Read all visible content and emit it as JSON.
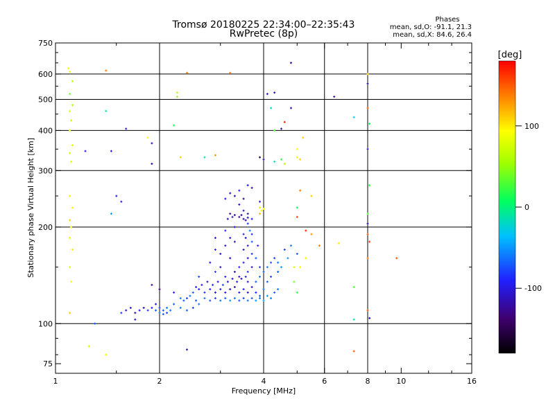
{
  "chart_data": {
    "type": "scatter",
    "title": "Tromsø 20180225 22:34:00–22:35:43",
    "subtitle": "RwPretec (8p)",
    "xlabel": "Frequency [MHz]",
    "ylabel": "Stationary phase Virtual Height [km]",
    "x_scale": "log",
    "y_scale": "log",
    "xlim": [
      1,
      16
    ],
    "ylim": [
      70,
      750
    ],
    "x_ticks": [
      1,
      2,
      4,
      6,
      8,
      10,
      16
    ],
    "x_tick_labels": [
      "1",
      "2",
      "4",
      "6",
      "8",
      "10",
      "16"
    ],
    "x_minor_ticks": [
      1.5,
      3,
      5,
      7,
      9,
      12,
      14
    ],
    "y_ticks": [
      75,
      100,
      200,
      300,
      400,
      500,
      600,
      750
    ],
    "y_tick_labels": [
      "75",
      "100",
      "200",
      "300",
      "400",
      "500",
      "600",
      "750"
    ],
    "grid_x": [
      2,
      4,
      6,
      8
    ],
    "grid_y": [
      100,
      200,
      300,
      400,
      500,
      600
    ],
    "grid": true,
    "stats": {
      "heading": "Phases",
      "line1": "mean, sd,O: -91.1, 21.3",
      "line2": "mean, sd,X:  84.6, 26.4"
    },
    "colorbar": {
      "label": "[deg]",
      "range": [
        -180,
        180
      ],
      "ticks": [
        100,
        0,
        -100
      ],
      "tick_labels": [
        "100",
        "0",
        "-100"
      ],
      "colormap": "rainbow"
    },
    "series": [
      {
        "points": [
          [
            1.09,
            625,
            90
          ],
          [
            1.1,
            610,
            95
          ],
          [
            1.12,
            570,
            60
          ],
          [
            1.1,
            520,
            40
          ],
          [
            1.12,
            480,
            60
          ],
          [
            1.1,
            460,
            80
          ],
          [
            1.11,
            430,
            70
          ],
          [
            1.1,
            400,
            90
          ],
          [
            1.12,
            360,
            85
          ],
          [
            1.1,
            340,
            70
          ],
          [
            1.11,
            320,
            80
          ],
          [
            1.1,
            250,
            100
          ],
          [
            1.12,
            230,
            90
          ],
          [
            1.1,
            210,
            110
          ],
          [
            1.11,
            200,
            95
          ],
          [
            1.1,
            185,
            90
          ],
          [
            1.12,
            170,
            100
          ],
          [
            1.1,
            150,
            80
          ],
          [
            1.11,
            135,
            90
          ],
          [
            1.1,
            108,
            110
          ],
          [
            1.4,
            615,
            140
          ],
          [
            2.4,
            605,
            140
          ],
          [
            3.2,
            605,
            140
          ],
          [
            2.25,
            525,
            60
          ],
          [
            2.25,
            510,
            50
          ],
          [
            1.4,
            460,
            -10
          ],
          [
            1.6,
            405,
            -100
          ],
          [
            1.85,
            380,
            100
          ],
          [
            1.9,
            365,
            -110
          ],
          [
            1.9,
            315,
            -120
          ],
          [
            2.2,
            415,
            20
          ],
          [
            2.3,
            330,
            110
          ],
          [
            2.7,
            330,
            -10
          ],
          [
            2.9,
            335,
            130
          ],
          [
            1.45,
            345,
            -100
          ],
          [
            1.22,
            345,
            -100
          ],
          [
            1.55,
            240,
            -100
          ],
          [
            1.5,
            250,
            -90
          ],
          [
            1.45,
            220,
            -50
          ],
          [
            4.1,
            520,
            -110
          ],
          [
            4.3,
            525,
            -110
          ],
          [
            4.8,
            650,
            -130
          ],
          [
            4.8,
            470,
            -110
          ],
          [
            4.2,
            470,
            -20
          ],
          [
            4.3,
            400,
            30
          ],
          [
            4.5,
            405,
            -120
          ],
          [
            4.6,
            425,
            170
          ],
          [
            3.9,
            330,
            -150
          ],
          [
            4.0,
            325,
            -120
          ],
          [
            4.3,
            320,
            -20
          ],
          [
            4.5,
            325,
            20
          ],
          [
            4.6,
            315,
            60
          ],
          [
            5.0,
            330,
            100
          ],
          [
            5.1,
            325,
            110
          ],
          [
            5.2,
            380,
            110
          ],
          [
            5.0,
            350,
            90
          ],
          [
            5.1,
            260,
            140
          ],
          [
            5.5,
            250,
            110
          ],
          [
            5.0,
            230,
            10
          ],
          [
            5.0,
            215,
            160
          ],
          [
            5.3,
            195,
            170
          ],
          [
            5.5,
            190,
            130
          ],
          [
            5.8,
            175,
            140
          ],
          [
            6.4,
            510,
            -120
          ],
          [
            7.3,
            440,
            -30
          ],
          [
            8.0,
            600,
            110
          ],
          [
            8.0,
            560,
            -120
          ],
          [
            8.0,
            470,
            150
          ],
          [
            8.1,
            420,
            10
          ],
          [
            8.0,
            350,
            -110
          ],
          [
            8.1,
            270,
            20
          ],
          [
            8.0,
            220,
            30
          ],
          [
            8.0,
            205,
            -120
          ],
          [
            8.0,
            190,
            150
          ],
          [
            8.1,
            180,
            160
          ],
          [
            8.0,
            160,
            140
          ],
          [
            8.0,
            110,
            150
          ],
          [
            8.1,
            104,
            -120
          ],
          [
            7.3,
            130,
            30
          ],
          [
            7.3,
            103,
            -10
          ],
          [
            7.3,
            82,
            150
          ],
          [
            9.7,
            160,
            150
          ],
          [
            6.6,
            178,
            100
          ],
          [
            2.4,
            83,
            -120
          ],
          [
            1.25,
            85,
            70
          ],
          [
            1.4,
            80,
            90
          ],
          [
            1.3,
            100,
            -70
          ]
        ]
      },
      {
        "points": [
          [
            3.2,
            255,
            -110
          ],
          [
            3.3,
            250,
            -120
          ],
          [
            3.4,
            260,
            -100
          ],
          [
            3.5,
            245,
            -130
          ],
          [
            3.6,
            270,
            -90
          ],
          [
            3.7,
            265,
            -120
          ],
          [
            3.1,
            245,
            -100
          ],
          [
            3.4,
            235,
            -110
          ],
          [
            3.5,
            225,
            -100
          ],
          [
            3.6,
            220,
            -120
          ],
          [
            3.2,
            220,
            -130
          ],
          [
            3.3,
            218,
            -120
          ],
          [
            3.4,
            215,
            -130
          ],
          [
            3.5,
            212,
            -120
          ],
          [
            3.6,
            214,
            -110
          ],
          [
            3.7,
            212,
            -100
          ],
          [
            3.15,
            212,
            -120
          ],
          [
            3.25,
            215,
            -110
          ],
          [
            3.45,
            218,
            -125
          ],
          [
            3.55,
            210,
            -130
          ],
          [
            3.9,
            230,
            80
          ],
          [
            3.95,
            225,
            100
          ],
          [
            3.9,
            220,
            120
          ],
          [
            4.0,
            228,
            90
          ],
          [
            3.9,
            240,
            -100
          ],
          [
            3.6,
            205,
            -80
          ],
          [
            3.65,
            195,
            -60
          ],
          [
            3.7,
            190,
            -90
          ],
          [
            3.55,
            185,
            -100
          ],
          [
            3.7,
            180,
            -70
          ],
          [
            3.6,
            175,
            -100
          ],
          [
            3.5,
            170,
            -110
          ],
          [
            3.7,
            165,
            -80
          ],
          [
            3.6,
            160,
            -100
          ],
          [
            3.8,
            160,
            -70
          ],
          [
            3.5,
            155,
            -90
          ],
          [
            3.7,
            150,
            -110
          ],
          [
            3.4,
            150,
            -100
          ],
          [
            3.6,
            145,
            -80
          ],
          [
            3.3,
            145,
            -120
          ],
          [
            3.2,
            160,
            -110
          ],
          [
            3.0,
            165,
            -100
          ],
          [
            2.9,
            170,
            -90
          ],
          [
            3.1,
            175,
            -110
          ],
          [
            3.3,
            180,
            -120
          ],
          [
            3.2,
            185,
            -100
          ],
          [
            3.0,
            150,
            -110
          ],
          [
            2.8,
            155,
            -100
          ],
          [
            2.9,
            145,
            -80
          ],
          [
            3.1,
            140,
            -90
          ],
          [
            3.4,
            140,
            -110
          ],
          [
            3.6,
            135,
            -100
          ],
          [
            3.8,
            135,
            -70
          ],
          [
            3.9,
            140,
            -60
          ],
          [
            4.0,
            145,
            -70
          ],
          [
            3.9,
            150,
            -80
          ],
          [
            4.1,
            150,
            -60
          ],
          [
            4.2,
            155,
            -70
          ],
          [
            4.3,
            160,
            -80
          ],
          [
            4.4,
            155,
            -60
          ],
          [
            4.5,
            150,
            -50
          ],
          [
            4.4,
            145,
            -70
          ],
          [
            4.2,
            140,
            -80
          ],
          [
            4.1,
            135,
            -70
          ],
          [
            4.0,
            128,
            -60
          ],
          [
            3.9,
            122,
            -70
          ],
          [
            3.8,
            125,
            -90
          ],
          [
            3.7,
            130,
            -100
          ],
          [
            3.6,
            125,
            -110
          ],
          [
            3.5,
            128,
            -90
          ],
          [
            3.4,
            125,
            -100
          ],
          [
            3.3,
            130,
            -120
          ],
          [
            3.2,
            128,
            -110
          ],
          [
            3.1,
            125,
            -100
          ],
          [
            3.0,
            128,
            -90
          ],
          [
            2.9,
            125,
            -110
          ],
          [
            2.8,
            128,
            -100
          ],
          [
            2.7,
            125,
            -80
          ],
          [
            2.6,
            128,
            -90
          ],
          [
            2.5,
            125,
            -70
          ],
          [
            2.45,
            122,
            -60
          ],
          [
            2.4,
            120,
            -80
          ],
          [
            2.35,
            118,
            -70
          ],
          [
            2.3,
            120,
            -60
          ],
          [
            2.55,
            130,
            -90
          ],
          [
            2.65,
            132,
            -100
          ],
          [
            2.75,
            135,
            -110
          ],
          [
            2.85,
            132,
            -90
          ],
          [
            2.95,
            135,
            -100
          ],
          [
            3.05,
            132,
            -80
          ],
          [
            3.15,
            135,
            -110
          ],
          [
            3.25,
            138,
            -100
          ],
          [
            3.35,
            135,
            -90
          ],
          [
            3.45,
            138,
            -110
          ],
          [
            3.55,
            140,
            -100
          ],
          [
            2.7,
            120,
            -60
          ],
          [
            2.8,
            118,
            -70
          ],
          [
            2.9,
            120,
            -80
          ],
          [
            3.0,
            118,
            -60
          ],
          [
            3.1,
            120,
            -70
          ],
          [
            3.2,
            118,
            -50
          ],
          [
            3.3,
            120,
            -60
          ],
          [
            3.4,
            118,
            -70
          ],
          [
            3.5,
            120,
            -80
          ],
          [
            3.6,
            118,
            -60
          ],
          [
            3.7,
            120,
            -70
          ],
          [
            3.8,
            118,
            -50
          ],
          [
            3.9,
            120,
            -60
          ],
          [
            4.0,
            118,
            -40
          ],
          [
            4.1,
            122,
            -50
          ],
          [
            4.2,
            120,
            -60
          ],
          [
            4.3,
            125,
            -70
          ],
          [
            4.4,
            128,
            -60
          ],
          [
            2.2,
            115,
            -70
          ],
          [
            2.1,
            112,
            -60
          ],
          [
            2.05,
            110,
            -70
          ],
          [
            2.0,
            112,
            -80
          ],
          [
            1.95,
            110,
            -70
          ],
          [
            1.9,
            112,
            -90
          ],
          [
            1.85,
            110,
            -80
          ],
          [
            2.0,
            108,
            -60
          ],
          [
            2.05,
            107,
            -70
          ],
          [
            2.1,
            108,
            -80
          ],
          [
            2.15,
            110,
            -60
          ],
          [
            1.95,
            115,
            -100
          ],
          [
            2.3,
            112,
            -60
          ],
          [
            2.4,
            110,
            -70
          ],
          [
            2.5,
            112,
            -80
          ],
          [
            2.6,
            115,
            -60
          ],
          [
            2.55,
            118,
            -70
          ],
          [
            1.8,
            112,
            -110
          ],
          [
            1.75,
            110,
            -100
          ],
          [
            1.7,
            108,
            -120
          ],
          [
            1.65,
            112,
            -110
          ],
          [
            1.6,
            110,
            -100
          ],
          [
            1.55,
            108,
            -80
          ],
          [
            1.9,
            132,
            -130
          ],
          [
            2.0,
            128,
            -140
          ],
          [
            1.7,
            103,
            -110
          ],
          [
            2.2,
            125,
            -90
          ],
          [
            2.6,
            140,
            -80
          ],
          [
            2.9,
            185,
            -100
          ],
          [
            3.1,
            195,
            -90
          ],
          [
            3.3,
            200,
            -100
          ],
          [
            3.5,
            190,
            -90
          ],
          [
            4.6,
            170,
            -80
          ],
          [
            4.8,
            175,
            -60
          ],
          [
            5.0,
            165,
            -70
          ],
          [
            4.7,
            160,
            -50
          ],
          [
            4.9,
            150,
            80
          ],
          [
            5.1,
            150,
            90
          ],
          [
            5.3,
            160,
            100
          ],
          [
            4.9,
            135,
            40
          ],
          [
            5.0,
            125,
            20
          ],
          [
            3.85,
            175,
            -90
          ]
        ]
      }
    ]
  }
}
